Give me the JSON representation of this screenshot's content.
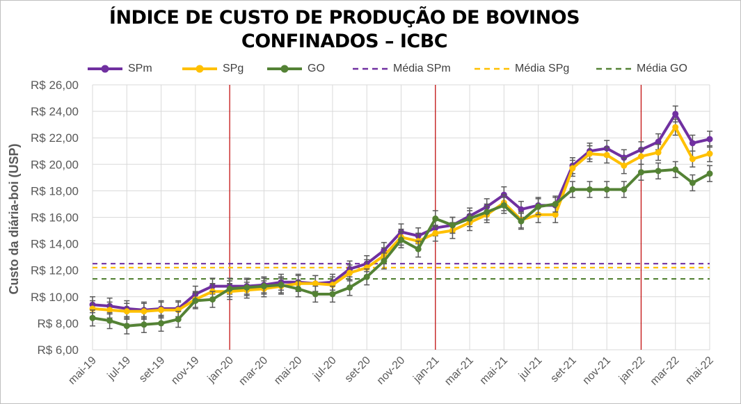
{
  "chart_data": {
    "type": "line",
    "title": "ÍNDICE DE CUSTO DE PRODUÇÃO DE BOVINOS CONFINADOS – ICBC",
    "title_line1": "ÍNDICE DE CUSTO DE PRODUÇÃO DE BOVINOS",
    "title_line2": "CONFINADOS – ICBC",
    "ylabel": "Custo da diária-boi  (USP)",
    "xlabel": "",
    "ylim": [
      6,
      26
    ],
    "yticks": [
      6,
      8,
      10,
      12,
      14,
      16,
      18,
      20,
      22,
      24,
      26
    ],
    "ytick_labels": [
      "R$ 6,00",
      "R$ 8,00",
      "R$ 10,00",
      "R$ 12,00",
      "R$ 14,00",
      "R$ 16,00",
      "R$ 18,00",
      "R$ 20,00",
      "R$ 22,00",
      "R$ 24,00",
      "R$ 26,00"
    ],
    "categories": [
      "mai-19",
      "jun-19",
      "jul-19",
      "ago-19",
      "set-19",
      "out-19",
      "nov-19",
      "dez-19",
      "jan-20",
      "fev-20",
      "mar-20",
      "abr-20",
      "mai-20",
      "jun-20",
      "jul-20",
      "ago-20",
      "set-20",
      "out-20",
      "nov-20",
      "dez-20",
      "jan-21",
      "fev-21",
      "mar-21",
      "abr-21",
      "mai-21",
      "jun-21",
      "jul-21",
      "ago-21",
      "set-21",
      "out-21",
      "nov-21",
      "dez-21",
      "jan-22",
      "fev-22",
      "mar-22",
      "abr-22",
      "mai-22"
    ],
    "xtick_labels_shown": [
      "mai-19",
      "jul-19",
      "set-19",
      "nov-19",
      "jan-20",
      "mar-20",
      "mai-20",
      "jul-20",
      "set-20",
      "nov-20",
      "jan-21",
      "mar-21",
      "mai-21",
      "jul-21",
      "set-21",
      "nov-21",
      "jan-22",
      "mar-22",
      "mai-22"
    ],
    "year_dividers": [
      "jan-20",
      "jan-21",
      "jan-22"
    ],
    "error_bar": 0.6,
    "series": [
      {
        "name": "SPm",
        "color": "#7030a0",
        "values": [
          9.4,
          9.3,
          9.1,
          9.0,
          9.1,
          9.1,
          10.2,
          10.8,
          10.8,
          10.8,
          10.9,
          11.1,
          11.1,
          11.0,
          11.1,
          12.1,
          12.5,
          13.5,
          14.9,
          14.6,
          15.2,
          15.4,
          16.1,
          16.8,
          17.7,
          16.6,
          16.9,
          16.9,
          19.9,
          21.0,
          21.2,
          20.5,
          21.1,
          21.7,
          23.8,
          21.6,
          21.9
        ]
      },
      {
        "name": "SPg",
        "color": "#ffc000",
        "values": [
          9.1,
          9.0,
          8.9,
          8.9,
          9.0,
          9.0,
          9.8,
          10.4,
          10.4,
          10.5,
          10.6,
          10.8,
          11.0,
          11.0,
          10.9,
          11.8,
          12.2,
          13.1,
          14.5,
          14.2,
          14.8,
          15.0,
          15.6,
          16.2,
          17.1,
          15.8,
          16.2,
          16.2,
          19.7,
          20.8,
          20.7,
          19.9,
          20.6,
          20.9,
          22.8,
          20.4,
          20.8
        ]
      },
      {
        "name": "GO",
        "color": "#548235",
        "values": [
          8.4,
          8.2,
          7.8,
          7.9,
          8.0,
          8.3,
          9.7,
          9.8,
          10.6,
          10.7,
          10.8,
          10.9,
          10.6,
          10.2,
          10.2,
          10.7,
          11.5,
          12.7,
          14.3,
          13.6,
          15.9,
          15.4,
          15.9,
          16.4,
          16.9,
          15.7,
          16.8,
          17.0,
          18.1,
          18.1,
          18.1,
          18.1,
          19.4,
          19.5,
          19.6,
          18.6,
          19.3
        ]
      }
    ],
    "averages": [
      {
        "name": "Média SPm",
        "color": "#7030a0",
        "value": 12.5
      },
      {
        "name": "Média SPg",
        "color": "#ffc000",
        "value": 12.2
      },
      {
        "name": "Média GO",
        "color": "#548235",
        "value": 11.35
      }
    ]
  }
}
